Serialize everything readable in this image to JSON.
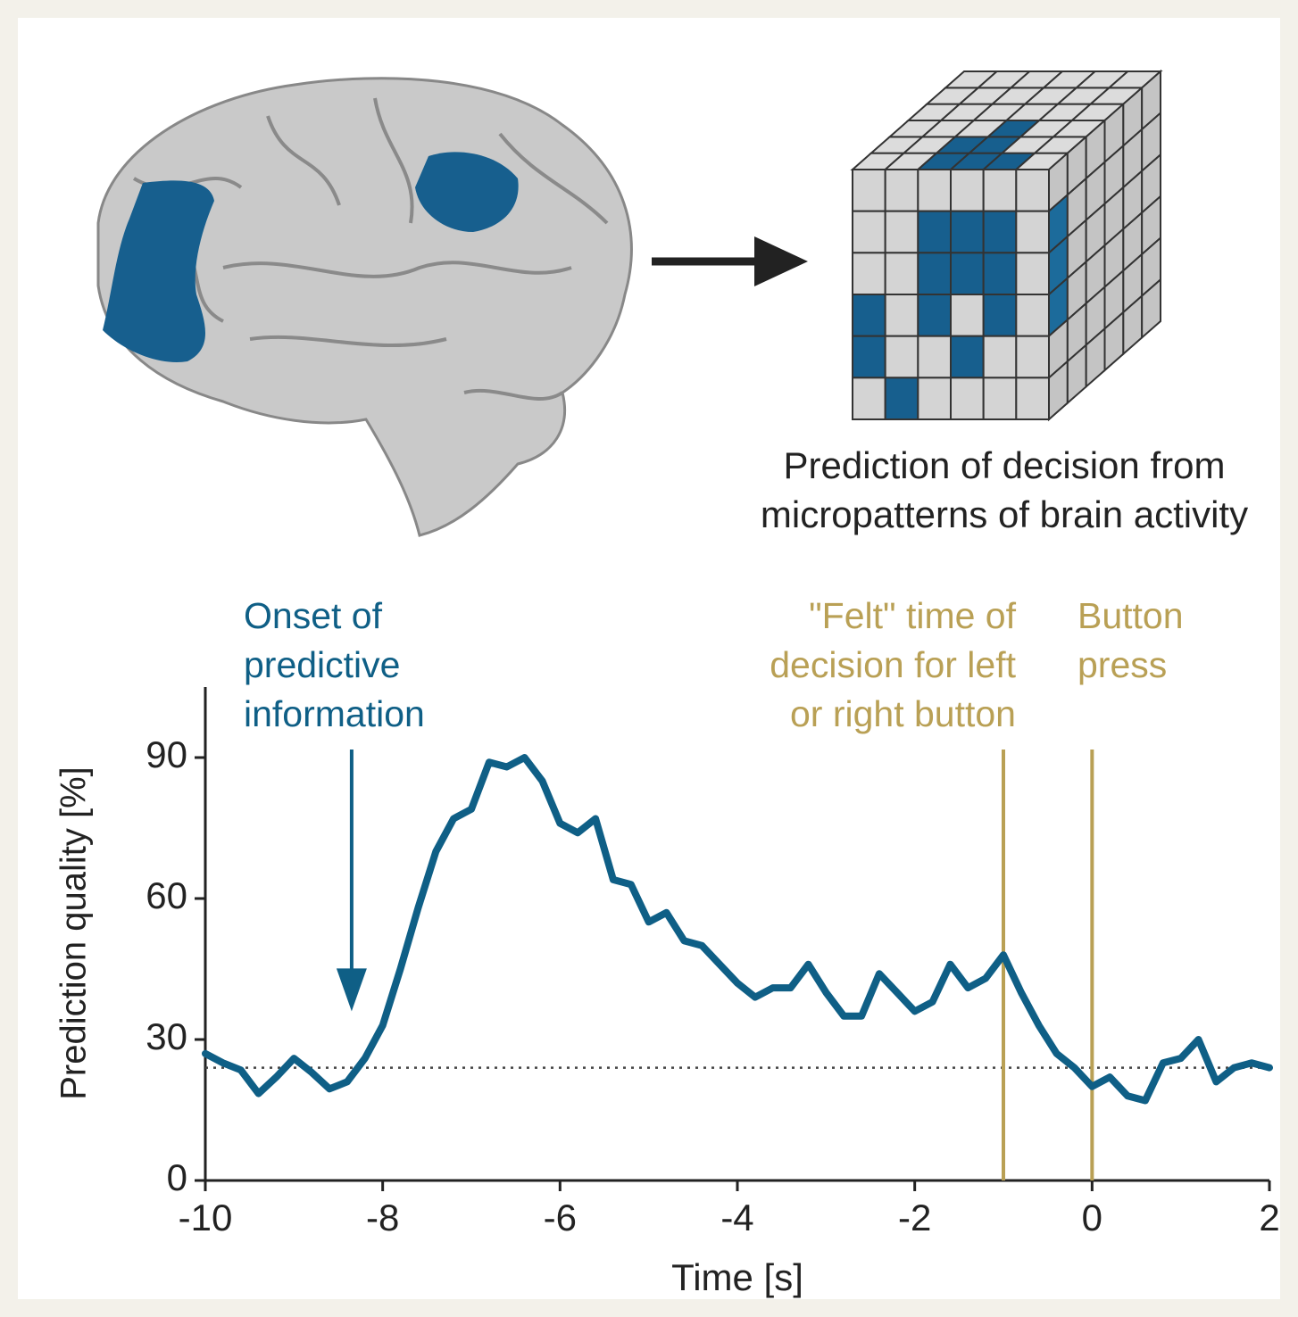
{
  "chart_data": {
    "type": "line",
    "caption": [
      "Prediction of decision from",
      "micropatterns of brain activity"
    ],
    "xlabel": "Time [s]",
    "ylabel": "Prediction quality [%]",
    "xlim": [
      -10,
      2
    ],
    "ylim": [
      0,
      105
    ],
    "xticks": [
      -10,
      -8,
      -6,
      -4,
      -2,
      0,
      2
    ],
    "yticks": [
      0,
      30,
      60,
      90
    ],
    "color": "#0f5f86",
    "reference_y": 24,
    "x": [
      -10,
      -9.8,
      -9.6,
      -9.4,
      -9.2,
      -9,
      -8.8,
      -8.6,
      -8.4,
      -8.2,
      -8,
      -7.8,
      -7.6,
      -7.4,
      -7.2,
      -7,
      -6.8,
      -6.6,
      -6.4,
      -6.2,
      -6,
      -5.8,
      -5.6,
      -5.4,
      -5.2,
      -5,
      -4.8,
      -4.6,
      -4.4,
      -4.2,
      -4,
      -3.8,
      -3.6,
      -3.4,
      -3.2,
      -3,
      -2.8,
      -2.6,
      -2.4,
      -2.2,
      -2,
      -1.8,
      -1.6,
      -1.4,
      -1.2,
      -1,
      -0.8,
      -0.6,
      -0.4,
      -0.2,
      0,
      0.2,
      0.4,
      0.6,
      0.8,
      1,
      1.2,
      1.4,
      1.6,
      1.8,
      2
    ],
    "values": [
      27,
      25,
      23.5,
      18.5,
      22,
      26,
      23,
      19.5,
      21,
      26,
      33,
      45,
      58,
      70,
      77,
      79,
      89,
      88,
      90,
      85,
      76,
      74,
      77,
      64,
      63,
      55,
      57,
      51,
      50,
      46,
      42,
      39,
      41,
      41,
      46,
      40,
      35,
      35,
      44,
      40,
      36,
      38,
      46,
      41,
      43,
      48,
      40,
      33,
      27,
      24,
      20,
      22,
      18,
      17,
      25,
      26,
      30,
      21,
      24,
      25,
      24
    ],
    "annotations": [
      {
        "lines": [
          "Onset of",
          "predictive",
          "information"
        ],
        "color": "#0f5f86",
        "x": -8.35,
        "arrow_y": 36
      },
      {
        "lines": [
          "\"Felt\" time of",
          "decision for left",
          "or right button"
        ],
        "color": "#b9a055",
        "x": -1
      },
      {
        "lines": [
          "Button",
          "press"
        ],
        "color": "#b9a055",
        "x": 0
      }
    ]
  }
}
